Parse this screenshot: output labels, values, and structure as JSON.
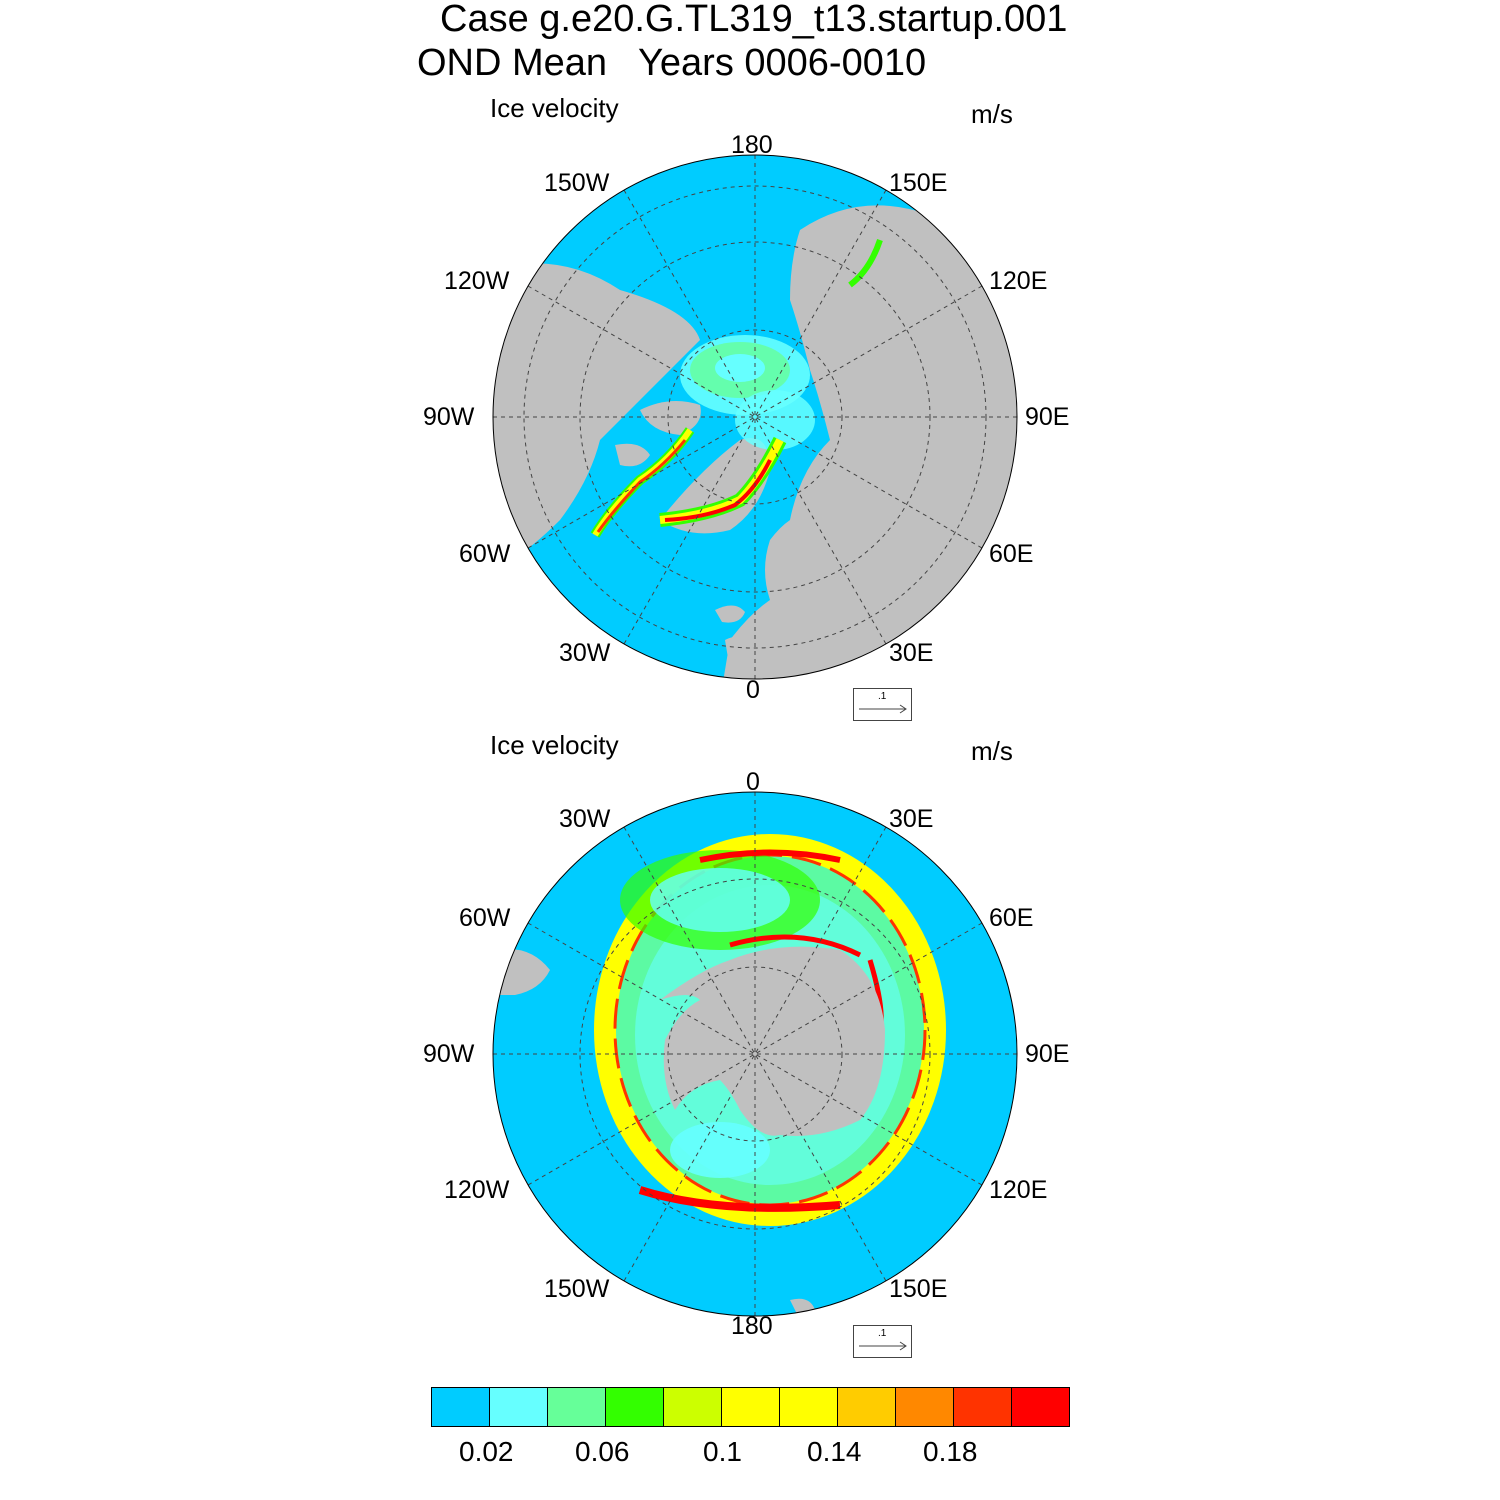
{
  "title": {
    "line1": "Case g.e20.G.TL319_t13.startup.001",
    "line2": "OND Mean   Years 0006-0010"
  },
  "panels": [
    {
      "id": "north",
      "hemisphere": "Northern Hemisphere",
      "field_label": "Ice velocity",
      "units": "m/s",
      "ref_vector": ".1",
      "lon_labels": [
        "180",
        "150E",
        "120E",
        "90E",
        "60E",
        "30E",
        "0",
        "30W",
        "60W",
        "90W",
        "120W",
        "150W"
      ]
    },
    {
      "id": "south",
      "hemisphere": "Southern Hemisphere",
      "field_label": "Ice velocity",
      "units": "m/s",
      "ref_vector": ".1",
      "lon_labels": [
        "0",
        "30E",
        "60E",
        "90E",
        "120E",
        "150E",
        "180",
        "150W",
        "120W",
        "90W",
        "60W",
        "30W"
      ]
    }
  ],
  "colorbar": {
    "colors": [
      "#00ccff",
      "#66ffff",
      "#66ff99",
      "#33ff00",
      "#ccff00",
      "#ffff00",
      "#ffff00",
      "#ffcc00",
      "#ff8800",
      "#ff3300",
      "#ff0000"
    ],
    "labels": [
      "0.02",
      "0.06",
      "0.1",
      "0.14",
      "0.18"
    ]
  },
  "colors": {
    "ocean": "#00ccff",
    "land": "#c0c0c0",
    "grid": "#444444"
  }
}
